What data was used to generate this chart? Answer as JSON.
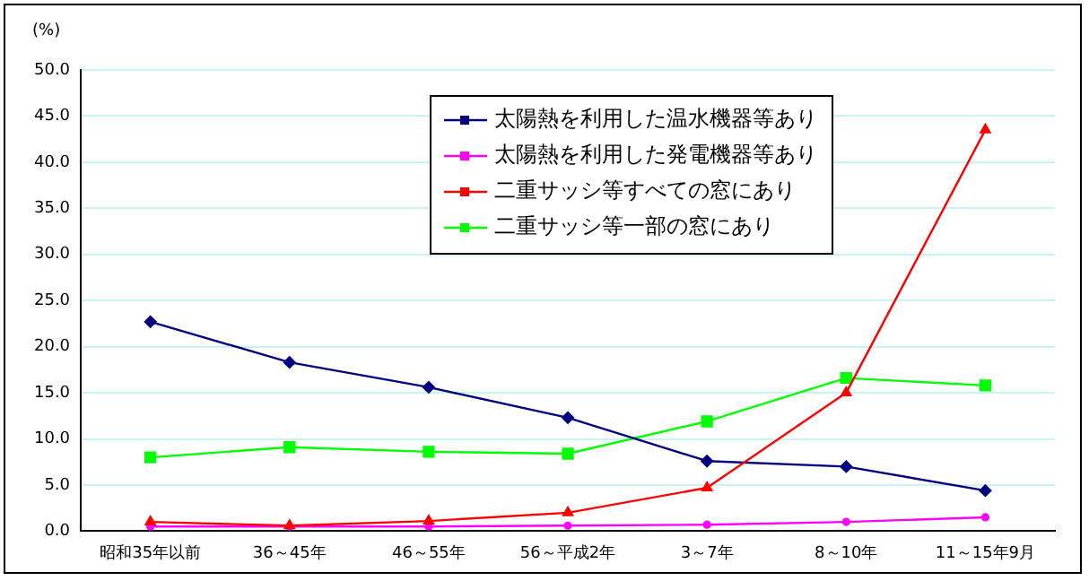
{
  "chart_data": {
    "type": "line",
    "ylabel": "(%)",
    "categories": [
      "昭和35年以前",
      "36～45年",
      "46～55年",
      "56～平成2年",
      "3～7年",
      "8～10年",
      "11～15年9月"
    ],
    "series": [
      {
        "name": "太陽熱を利用した温水機器等あり",
        "color": "#000080",
        "marker": "diamond",
        "values": [
          22.7,
          18.3,
          15.6,
          12.3,
          7.6,
          7.0,
          4.4
        ]
      },
      {
        "name": "太陽熱を利用した発電機器等あり",
        "color": "#ff00ff",
        "marker": "circle",
        "values": [
          0.5,
          0.5,
          0.5,
          0.6,
          0.7,
          1.0,
          1.5
        ]
      },
      {
        "name": "二重サッシ等すべての窓にあり",
        "color": "#ff0000",
        "marker": "triangle",
        "values": [
          1.0,
          0.6,
          1.1,
          2.0,
          4.7,
          15.0,
          43.5
        ]
      },
      {
        "name": "二重サッシ等一部の窓にあり",
        "color": "#00ff00",
        "marker": "square",
        "values": [
          8.0,
          9.1,
          8.6,
          8.4,
          11.9,
          16.6,
          15.8
        ]
      }
    ],
    "ylim": [
      0,
      50
    ],
    "yticks": [
      {
        "value": 0,
        "label": "0.0"
      },
      {
        "value": 5,
        "label": "5.0"
      },
      {
        "value": 10,
        "label": "10.0"
      },
      {
        "value": 15,
        "label": "15.0"
      },
      {
        "value": 20,
        "label": "20.0"
      },
      {
        "value": 25,
        "label": "25.0"
      },
      {
        "value": 30,
        "label": "30.0"
      },
      {
        "value": 35,
        "label": "35.0"
      },
      {
        "value": 40,
        "label": "40.0"
      },
      {
        "value": 45,
        "label": "45.0"
      },
      {
        "value": 50,
        "label": "50.0"
      }
    ],
    "grid": "y",
    "legend": "top",
    "line_style": "solid"
  }
}
